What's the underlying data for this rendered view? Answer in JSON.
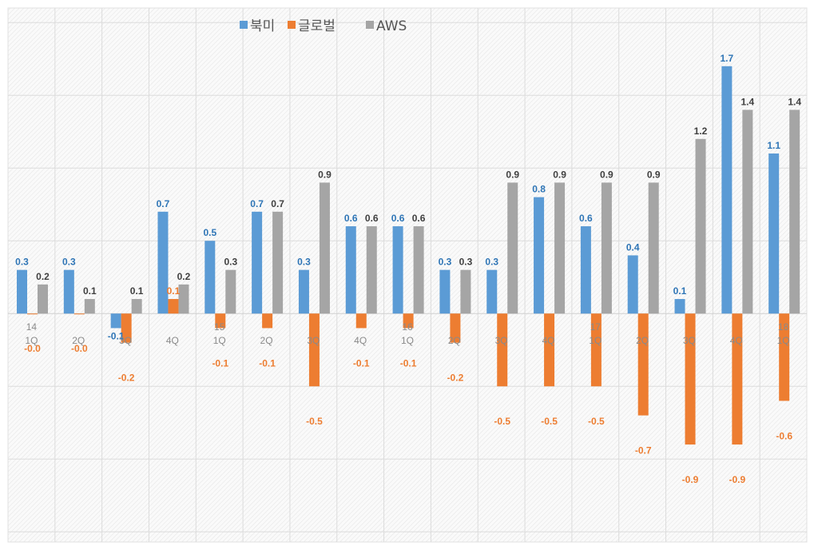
{
  "chart_data": {
    "type": "bar",
    "title": "",
    "xlabel": "",
    "ylabel": "",
    "ylim": [
      -1.57,
      2.1
    ],
    "grid": true,
    "legend_position": "top",
    "categories": [
      [
        "14",
        "1Q"
      ],
      [
        "",
        "2Q"
      ],
      [
        "",
        "3Q"
      ],
      [
        "",
        "4Q"
      ],
      [
        "15",
        "1Q"
      ],
      [
        "",
        "2Q"
      ],
      [
        "",
        "3Q"
      ],
      [
        "",
        "4Q"
      ],
      [
        "16",
        "1Q"
      ],
      [
        "",
        "2Q"
      ],
      [
        "",
        "3Q"
      ],
      [
        "",
        "4Q"
      ],
      [
        "17",
        "1Q"
      ],
      [
        "",
        "2Q"
      ],
      [
        "",
        "3Q"
      ],
      [
        "",
        "4Q"
      ],
      [
        "18",
        "1Q"
      ]
    ],
    "series": [
      {
        "name": "북미",
        "color": "#5B9BD5",
        "label_color": "#2E75B6",
        "values": [
          0.3,
          0.3,
          -0.1,
          0.7,
          0.5,
          0.7,
          0.3,
          0.6,
          0.6,
          0.3,
          0.3,
          0.8,
          0.6,
          0.4,
          0.1,
          1.7,
          1.1
        ]
      },
      {
        "name": "글로벌",
        "color": "#ED7D31",
        "label_color": "#ED7D31",
        "values": [
          -0.0,
          -0.0,
          -0.2,
          0.1,
          -0.1,
          -0.1,
          -0.5,
          -0.1,
          -0.1,
          -0.2,
          -0.5,
          -0.5,
          -0.5,
          -0.7,
          -0.9,
          -0.9,
          -0.6
        ]
      },
      {
        "name": "AWS",
        "color": "#A5A5A5",
        "label_color": "#404040",
        "values": [
          0.2,
          0.1,
          0.1,
          0.2,
          0.3,
          0.7,
          0.9,
          0.6,
          0.6,
          0.3,
          0.9,
          0.9,
          0.9,
          0.9,
          1.2,
          1.4,
          1.4
        ]
      }
    ]
  }
}
